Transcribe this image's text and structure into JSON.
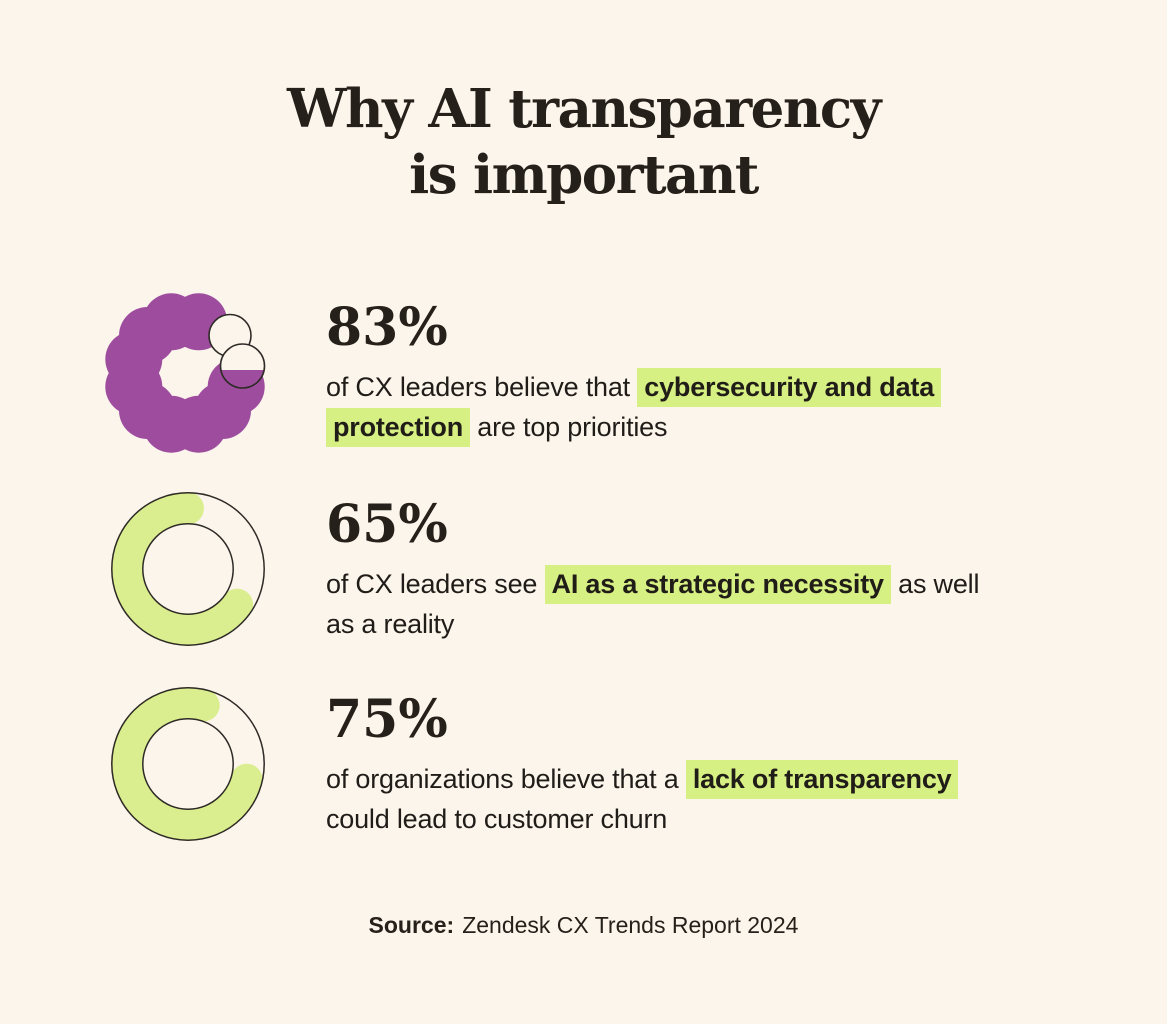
{
  "page": {
    "background": "#FBF5EC",
    "title_line1": "Why AI transparency",
    "title_line2": "is important"
  },
  "colors": {
    "text": "#26201B",
    "purple": "#9E4D9E",
    "donut_green": "#DAEE8F",
    "highlight_green": "#D7F083",
    "outline": "#2E2A26",
    "background": "#FBF5EC"
  },
  "stats": [
    {
      "value": "83%",
      "percent": 83,
      "icon": "scalloped-ring",
      "segments": [
        {
          "text": "of CX leaders believe that "
        },
        {
          "text": "cybersecurity and data",
          "highlight": true
        },
        {
          "break": true
        },
        {
          "text": "protection",
          "highlight": true
        },
        {
          "text": " are top priorities"
        }
      ]
    },
    {
      "value": "65%",
      "percent": 65,
      "icon": "donut",
      "arc_start_deg": 0,
      "segments": [
        {
          "text": "of CX leaders see "
        },
        {
          "text": "AI as a strategic necessity",
          "highlight": true
        },
        {
          "text": " as well"
        },
        {
          "break": true
        },
        {
          "text": "as a reality"
        }
      ]
    },
    {
      "value": "75%",
      "percent": 75,
      "icon": "donut",
      "arc_start_deg": 15,
      "segments": [
        {
          "text": "of organizations believe that a "
        },
        {
          "text": "lack of transparency",
          "highlight": true
        },
        {
          "break": true
        },
        {
          "text": "could lead to customer churn"
        }
      ]
    }
  ],
  "source": {
    "label": "Source:",
    "text": "Zendesk CX Trends Report 2024"
  },
  "chart_data": {
    "type": "pie",
    "subtype": "donut-indicators",
    "title": "Why AI transparency is important",
    "source": "Zendesk CX Trends Report 2024",
    "series": [
      {
        "name": "CX leaders who believe cybersecurity and data protection are top priorities",
        "value": 83,
        "unit": "%",
        "style": "scalloped-ring",
        "color": "#9E4D9E"
      },
      {
        "name": "CX leaders who see AI as a strategic necessity as well as a reality",
        "value": 65,
        "unit": "%",
        "style": "donut",
        "color": "#DAEE8F"
      },
      {
        "name": "organizations that believe a lack of transparency could lead to customer churn",
        "value": 75,
        "unit": "%",
        "style": "donut",
        "color": "#DAEE8F"
      }
    ]
  }
}
